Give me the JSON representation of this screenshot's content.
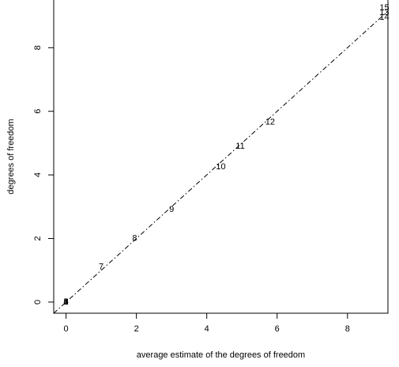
{
  "chart_data": {
    "type": "scatter",
    "title": "",
    "xlabel": "average estimate of the degrees of freedom",
    "ylabel": "degrees of freedom",
    "xlim": [
      -0.35,
      9.15
    ],
    "ylim": [
      -0.35,
      9.5
    ],
    "xticks": [
      0,
      2,
      4,
      6,
      8
    ],
    "yticks": [
      0,
      2,
      4,
      6,
      8
    ],
    "grid": false,
    "marker": "text-labels",
    "reference_line": {
      "from": [
        -0.35,
        -0.35
      ],
      "to": [
        9.15,
        9.15
      ],
      "style": "dash-dot"
    },
    "points": [
      {
        "label": "1",
        "x": 0.0,
        "y": 0.0
      },
      {
        "label": "2",
        "x": 0.0,
        "y": 0.0
      },
      {
        "label": "3",
        "x": 0.0,
        "y": 0.0
      },
      {
        "label": "4",
        "x": 0.0,
        "y": 0.0
      },
      {
        "label": "5",
        "x": 0.0,
        "y": 0.0
      },
      {
        "label": "6",
        "x": 0.0,
        "y": 0.0
      },
      {
        "label": "7",
        "x": 1.0,
        "y": 1.1
      },
      {
        "label": "8",
        "x": 1.95,
        "y": 2.0
      },
      {
        "label": "9",
        "x": 3.0,
        "y": 2.9
      },
      {
        "label": "10",
        "x": 4.4,
        "y": 4.25
      },
      {
        "label": "11",
        "x": 4.95,
        "y": 4.9
      },
      {
        "label": "12",
        "x": 5.8,
        "y": 5.65
      },
      {
        "label": "13",
        "x": 9.05,
        "y": 9.1
      },
      {
        "label": "14",
        "x": 9.05,
        "y": 8.95
      },
      {
        "label": "15",
        "x": 9.05,
        "y": 9.25
      }
    ]
  }
}
